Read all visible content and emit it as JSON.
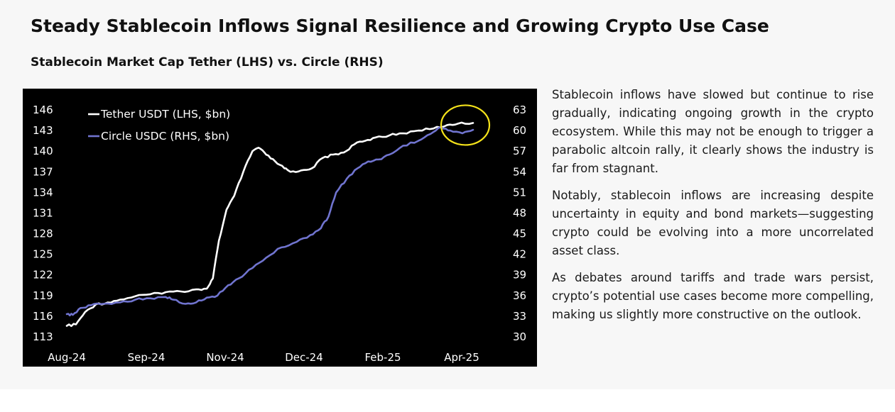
{
  "header": {
    "title": "Steady Stablecoin Inflows Signal Resilience and Growing Crypto Use Case",
    "subtitle": "Stablecoin Market Cap Tether (LHS) vs. Circle (RHS)"
  },
  "commentary": {
    "paragraphs": [
      "Stablecoin inflows have slowed but continue to rise gradually, indicating ongoing growth in the crypto ecosystem. While this may not be enough to trigger a parabolic altcoin rally, it clearly shows the industry is far from stagnant.",
      "Notably, stablecoin inflows are increasing despite uncertainty in equity and bond markets—suggesting crypto could be evolving into a more uncorrelated asset class.",
      "As debates around tariffs and trade wars persist, crypto’s potential use cases become more compelling, making us slightly more constructive on the outlook."
    ]
  },
  "chart_data": {
    "type": "line",
    "background": "#000000",
    "x_tick_labels": [
      "Aug-24",
      "Sep-24",
      "Nov-24",
      "Dec-24",
      "Feb-25",
      "Apr-25"
    ],
    "y_left": {
      "ticks": [
        113,
        116,
        119,
        122,
        125,
        128,
        131,
        134,
        137,
        140,
        143,
        146
      ],
      "range": [
        113,
        146
      ]
    },
    "y_right": {
      "ticks": [
        30,
        33,
        36,
        39,
        42,
        45,
        48,
        51,
        54,
        57,
        60,
        63
      ],
      "range": [
        30,
        63
      ]
    },
    "x_range": [
      "2024-08-01",
      "2025-04-25"
    ],
    "legend": {
      "placement": "top-left"
    },
    "highlight": {
      "shape": "circle",
      "color": "#f5e31a",
      "around": "latest values"
    },
    "series": [
      {
        "name": "Tether USDT (LHS, $bn)",
        "axis": "left",
        "color": "#ffffff",
        "points": [
          [
            "2024-08-01",
            114.6
          ],
          [
            "2024-08-07",
            114.8
          ],
          [
            "2024-08-13",
            116.6
          ],
          [
            "2024-08-20",
            117.7
          ],
          [
            "2024-08-28",
            118.0
          ],
          [
            "2024-09-05",
            118.4
          ],
          [
            "2024-09-15",
            118.9
          ],
          [
            "2024-09-25",
            119.2
          ],
          [
            "2024-10-05",
            119.5
          ],
          [
            "2024-10-15",
            119.6
          ],
          [
            "2024-10-25",
            119.9
          ],
          [
            "2024-11-01",
            120.0
          ],
          [
            "2024-11-05",
            121.5
          ],
          [
            "2024-11-09",
            127.0
          ],
          [
            "2024-11-14",
            131.5
          ],
          [
            "2024-11-19",
            133.5
          ],
          [
            "2024-11-25",
            137.0
          ],
          [
            "2024-12-01",
            140.0
          ],
          [
            "2024-12-05",
            140.5
          ],
          [
            "2024-12-10",
            139.5
          ],
          [
            "2024-12-16",
            138.5
          ],
          [
            "2024-12-22",
            137.5
          ],
          [
            "2024-12-26",
            137.0
          ],
          [
            "2025-01-02",
            137.2
          ],
          [
            "2025-01-09",
            137.5
          ],
          [
            "2025-01-16",
            139.0
          ],
          [
            "2025-01-23",
            139.5
          ],
          [
            "2025-01-30",
            139.8
          ],
          [
            "2025-02-06",
            141.0
          ],
          [
            "2025-02-13",
            141.5
          ],
          [
            "2025-02-20",
            142.0
          ],
          [
            "2025-03-01",
            142.3
          ],
          [
            "2025-03-10",
            142.6
          ],
          [
            "2025-03-20",
            143.0
          ],
          [
            "2025-03-30",
            143.3
          ],
          [
            "2025-04-08",
            143.8
          ],
          [
            "2025-04-15",
            144.0
          ],
          [
            "2025-04-25",
            144.1
          ]
        ]
      },
      {
        "name": "Circle USDC (RHS, $bn)",
        "axis": "right",
        "color": "#7074cf",
        "points": [
          [
            "2024-08-01",
            33.3
          ],
          [
            "2024-08-05",
            33.2
          ],
          [
            "2024-08-10",
            34.2
          ],
          [
            "2024-08-17",
            34.6
          ],
          [
            "2024-08-25",
            34.8
          ],
          [
            "2024-09-05",
            35.0
          ],
          [
            "2024-09-15",
            35.4
          ],
          [
            "2024-09-25",
            35.6
          ],
          [
            "2024-10-05",
            35.8
          ],
          [
            "2024-10-10",
            35.4
          ],
          [
            "2024-10-18",
            34.8
          ],
          [
            "2024-10-25",
            35.0
          ],
          [
            "2024-11-01",
            35.7
          ],
          [
            "2024-11-08",
            36.0
          ],
          [
            "2024-11-15",
            37.5
          ],
          [
            "2024-11-22",
            38.5
          ],
          [
            "2024-12-01",
            40.0
          ],
          [
            "2024-12-10",
            41.5
          ],
          [
            "2024-12-20",
            43.0
          ],
          [
            "2024-12-30",
            43.8
          ],
          [
            "2025-01-08",
            44.8
          ],
          [
            "2025-01-15",
            45.8
          ],
          [
            "2025-01-20",
            47.5
          ],
          [
            "2025-01-25",
            51.0
          ],
          [
            "2025-02-01",
            53.0
          ],
          [
            "2025-02-08",
            54.5
          ],
          [
            "2025-02-15",
            55.5
          ],
          [
            "2025-02-22",
            55.8
          ],
          [
            "2025-03-01",
            56.5
          ],
          [
            "2025-03-10",
            57.8
          ],
          [
            "2025-03-20",
            58.5
          ],
          [
            "2025-03-28",
            59.5
          ],
          [
            "2025-04-04",
            60.5
          ],
          [
            "2025-04-10",
            60.0
          ],
          [
            "2025-04-18",
            59.6
          ],
          [
            "2025-04-25",
            60.1
          ]
        ]
      }
    ]
  }
}
